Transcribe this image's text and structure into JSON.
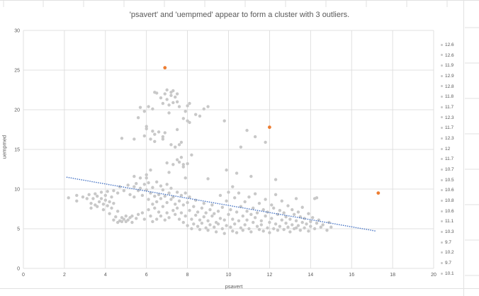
{
  "chart_data": {
    "type": "scatter",
    "title": "'psavert' and 'uempmed' appear to form a cluster with   3 outliers.",
    "xlabel": "psavert",
    "ylabel": "uempmed",
    "xlim": [
      0,
      20
    ],
    "ylim": [
      0,
      30
    ],
    "x_ticks": [
      "0",
      "2",
      "4",
      "6",
      "8",
      "10",
      "12",
      "14",
      "16",
      "18",
      "20"
    ],
    "y_ticks": [
      "0",
      "5",
      "10",
      "15",
      "20",
      "25",
      "30"
    ],
    "grid": true,
    "colors": {
      "points": "#c8c8c8",
      "outliers": "#ed7d31",
      "trendline": "#4472c4",
      "grid": "#d9d9d9"
    },
    "legend": {
      "placement": "right",
      "entries": [
        "12.6",
        "12.6",
        "11.9",
        "12.9",
        "12.8",
        "11.8",
        "11.7",
        "12.3",
        "11.7",
        "12.3",
        "12",
        "11.7",
        "10.7",
        "10.5",
        "10.6",
        "10.8",
        "10.6",
        "11.1",
        "10.3",
        "9.7",
        "10.2",
        "9.7",
        "10.1"
      ]
    },
    "series": [
      {
        "kind": "cluster",
        "points": [
          [
            2.2,
            8.9
          ],
          [
            2.6,
            9.2
          ],
          [
            2.6,
            8.5
          ],
          [
            2.9,
            9.0
          ],
          [
            3.1,
            8.8
          ],
          [
            3.2,
            9.3
          ],
          [
            3.3,
            8.2
          ],
          [
            3.3,
            7.6
          ],
          [
            3.4,
            8.8
          ],
          [
            3.5,
            9.4
          ],
          [
            3.5,
            8.0
          ],
          [
            3.6,
            9.1
          ],
          [
            3.6,
            7.8
          ],
          [
            3.7,
            8.4
          ],
          [
            3.8,
            9.6
          ],
          [
            3.8,
            8.8
          ],
          [
            3.9,
            8.1
          ],
          [
            3.9,
            7.4
          ],
          [
            4.0,
            9.2
          ],
          [
            4.0,
            8.6
          ],
          [
            4.1,
            9.7
          ],
          [
            4.1,
            7.9
          ],
          [
            4.2,
            8.4
          ],
          [
            4.2,
            6.9
          ],
          [
            4.3,
            9.0
          ],
          [
            4.3,
            7.6
          ],
          [
            4.4,
            9.8
          ],
          [
            4.4,
            8.2
          ],
          [
            4.4,
            6.1
          ],
          [
            4.5,
            6.5
          ],
          [
            4.6,
            5.8
          ],
          [
            4.6,
            7.2
          ],
          [
            4.6,
            9.5
          ],
          [
            4.7,
            6.0
          ],
          [
            4.7,
            10.3
          ],
          [
            4.8,
            6.4
          ],
          [
            4.8,
            5.9
          ],
          [
            4.9,
            6.2
          ],
          [
            4.9,
            9.8
          ],
          [
            5.0,
            6.6
          ],
          [
            5.0,
            5.9
          ],
          [
            5.1,
            6.1
          ],
          [
            5.1,
            10.5
          ],
          [
            5.2,
            6.4
          ],
          [
            5.2,
            9.3
          ],
          [
            5.3,
            5.8
          ],
          [
            5.3,
            6.6
          ],
          [
            5.4,
            10.3
          ],
          [
            5.4,
            9.0
          ],
          [
            5.5,
            6.3
          ],
          [
            5.5,
            10.7
          ],
          [
            5.6,
            9.8
          ],
          [
            5.6,
            6.8
          ],
          [
            5.7,
            11.4
          ],
          [
            5.7,
            10.1
          ],
          [
            5.8,
            7.0
          ],
          [
            5.8,
            9.2
          ],
          [
            5.9,
            10.6
          ],
          [
            5.9,
            6.2
          ],
          [
            6.0,
            9.9
          ],
          [
            6.0,
            11.8
          ],
          [
            6.1,
            8.7
          ],
          [
            6.1,
            7.4
          ],
          [
            6.1,
            10.8
          ],
          [
            6.2,
            9.5
          ],
          [
            6.2,
            6.6
          ],
          [
            6.3,
            10.2
          ],
          [
            6.3,
            8.1
          ],
          [
            6.3,
            5.9
          ],
          [
            6.4,
            9.1
          ],
          [
            6.4,
            7.6
          ],
          [
            6.5,
            10.9
          ],
          [
            6.5,
            8.4
          ],
          [
            6.5,
            6.2
          ],
          [
            6.6,
            9.3
          ],
          [
            6.6,
            7.1
          ],
          [
            6.7,
            10.4
          ],
          [
            6.7,
            8.8
          ],
          [
            6.7,
            6.6
          ],
          [
            6.8,
            9.9
          ],
          [
            6.8,
            7.8
          ],
          [
            6.9,
            6.1
          ],
          [
            6.9,
            9.1
          ],
          [
            7.0,
            8.3
          ],
          [
            7.0,
            10.6
          ],
          [
            7.0,
            7.0
          ],
          [
            7.1,
            9.5
          ],
          [
            7.1,
            6.4
          ],
          [
            7.2,
            8.7
          ],
          [
            7.2,
            10.1
          ],
          [
            7.3,
            7.3
          ],
          [
            7.3,
            9.0
          ],
          [
            7.4,
            8.1
          ],
          [
            7.4,
            6.8
          ],
          [
            7.5,
            9.6
          ],
          [
            7.5,
            7.6
          ],
          [
            7.6,
            8.5
          ],
          [
            7.6,
            6.2
          ],
          [
            7.7,
            9.2
          ],
          [
            7.7,
            7.0
          ],
          [
            7.8,
            8.0
          ],
          [
            7.8,
            5.8
          ],
          [
            7.9,
            9.5
          ],
          [
            7.9,
            6.6
          ],
          [
            8.0,
            8.3
          ],
          [
            8.0,
            5.4
          ],
          [
            8.1,
            7.3
          ],
          [
            8.1,
            9.0
          ],
          [
            8.2,
            6.2
          ],
          [
            8.2,
            5.0
          ],
          [
            8.3,
            7.8
          ],
          [
            8.3,
            5.6
          ],
          [
            8.4,
            6.7
          ],
          [
            8.4,
            8.6
          ],
          [
            8.5,
            5.3
          ],
          [
            8.5,
            7.1
          ],
          [
            8.6,
            6.1
          ],
          [
            8.6,
            4.9
          ],
          [
            8.7,
            7.6
          ],
          [
            8.7,
            5.7
          ],
          [
            8.8,
            6.5
          ],
          [
            8.8,
            8.2
          ],
          [
            8.9,
            5.1
          ],
          [
            8.9,
            7.0
          ],
          [
            9.0,
            6.0
          ],
          [
            9.0,
            4.8
          ],
          [
            9.1,
            7.4
          ],
          [
            9.1,
            5.5
          ],
          [
            9.2,
            6.6
          ],
          [
            9.2,
            8.0
          ],
          [
            9.3,
            5.2
          ],
          [
            9.3,
            6.9
          ],
          [
            9.4,
            5.8
          ],
          [
            9.4,
            4.6
          ],
          [
            9.5,
            7.2
          ],
          [
            9.5,
            5.6
          ],
          [
            9.6,
            6.3
          ],
          [
            9.6,
            9.2
          ],
          [
            9.7,
            5.0
          ],
          [
            9.7,
            7.7
          ],
          [
            9.8,
            6.1
          ],
          [
            9.8,
            4.4
          ],
          [
            9.9,
            8.5
          ],
          [
            9.9,
            5.4
          ],
          [
            10.0,
            6.8
          ],
          [
            10.0,
            9.6
          ],
          [
            10.1,
            5.2
          ],
          [
            10.1,
            7.4
          ],
          [
            10.2,
            4.7
          ],
          [
            10.2,
            6.2
          ],
          [
            10.3,
            8.9
          ],
          [
            10.3,
            5.6
          ],
          [
            10.4,
            7.1
          ],
          [
            10.4,
            4.5
          ],
          [
            10.5,
            9.5
          ],
          [
            10.5,
            6.0
          ],
          [
            10.6,
            5.1
          ],
          [
            10.6,
            7.8
          ],
          [
            10.7,
            6.6
          ],
          [
            10.7,
            4.8
          ],
          [
            10.8,
            8.4
          ],
          [
            10.8,
            5.5
          ],
          [
            10.9,
            7.2
          ],
          [
            10.9,
            6.1
          ],
          [
            11.0,
            5.0
          ],
          [
            11.0,
            9.0
          ],
          [
            11.1,
            6.8
          ],
          [
            11.1,
            4.6
          ],
          [
            11.2,
            7.6
          ],
          [
            11.2,
            5.8
          ],
          [
            11.3,
            6.4
          ],
          [
            11.3,
            9.4
          ],
          [
            11.4,
            5.3
          ],
          [
            11.4,
            7.0
          ],
          [
            11.5,
            4.9
          ],
          [
            11.5,
            8.2
          ],
          [
            11.6,
            6.0
          ],
          [
            11.6,
            5.5
          ],
          [
            11.7,
            7.4
          ],
          [
            11.7,
            4.7
          ],
          [
            11.8,
            6.6
          ],
          [
            11.8,
            8.7
          ],
          [
            11.9,
            5.1
          ],
          [
            11.9,
            7.1
          ],
          [
            12.0,
            5.8
          ],
          [
            12.0,
            4.5
          ],
          [
            12.1,
            8.0
          ],
          [
            12.1,
            6.3
          ],
          [
            12.2,
            5.0
          ],
          [
            12.2,
            7.6
          ],
          [
            12.3,
            5.6
          ],
          [
            12.3,
            9.3
          ],
          [
            12.4,
            6.8
          ],
          [
            12.4,
            4.8
          ],
          [
            12.5,
            7.3
          ],
          [
            12.5,
            5.3
          ],
          [
            12.6,
            6.1
          ],
          [
            12.6,
            8.5
          ],
          [
            12.7,
            4.9
          ],
          [
            12.7,
            7.0
          ],
          [
            12.8,
            5.7
          ],
          [
            12.8,
            6.5
          ],
          [
            12.9,
            5.2
          ],
          [
            12.9,
            7.9
          ],
          [
            13.0,
            6.2
          ],
          [
            13.0,
            4.6
          ],
          [
            13.1,
            7.4
          ],
          [
            13.1,
            5.5
          ],
          [
            13.2,
            6.8
          ],
          [
            13.2,
            5.0
          ],
          [
            13.3,
            8.8
          ],
          [
            13.3,
            6.0
          ],
          [
            13.4,
            5.4
          ],
          [
            13.4,
            7.1
          ],
          [
            13.5,
            4.8
          ],
          [
            13.5,
            6.5
          ],
          [
            13.6,
            5.8
          ],
          [
            13.6,
            7.7
          ],
          [
            13.7,
            5.1
          ],
          [
            13.7,
            6.3
          ],
          [
            13.8,
            5.6
          ],
          [
            13.9,
            6.9
          ],
          [
            13.9,
            4.7
          ],
          [
            14.0,
            5.9
          ],
          [
            14.0,
            5.3
          ],
          [
            14.1,
            6.4
          ],
          [
            14.2,
            5.0
          ],
          [
            14.3,
            8.9
          ],
          [
            14.3,
            5.7
          ],
          [
            14.4,
            6.1
          ],
          [
            14.5,
            5.2
          ],
          [
            14.6,
            5.5
          ],
          [
            14.8,
            4.8
          ],
          [
            14.9,
            5.8
          ],
          [
            15.0,
            5.2
          ],
          [
            13.3,
            5.1
          ],
          [
            14.2,
            8.8
          ],
          [
            6.9,
            22.0
          ],
          [
            7.0,
            21.3
          ],
          [
            7.0,
            22.5
          ],
          [
            7.1,
            20.6
          ],
          [
            7.2,
            21.8
          ],
          [
            7.2,
            22.2
          ],
          [
            7.3,
            20.9
          ],
          [
            7.3,
            22.4
          ],
          [
            7.4,
            21.6
          ],
          [
            7.5,
            22.0
          ],
          [
            7.5,
            21.0
          ],
          [
            7.6,
            20.4
          ],
          [
            7.1,
            19.6
          ],
          [
            6.8,
            20.8
          ],
          [
            6.7,
            21.5
          ],
          [
            6.5,
            22.1
          ],
          [
            6.3,
            20.1
          ],
          [
            6.1,
            20.4
          ],
          [
            5.9,
            19.8
          ],
          [
            5.7,
            20.3
          ],
          [
            6.6,
            17.2
          ],
          [
            6.8,
            16.6
          ],
          [
            6.9,
            17.1
          ],
          [
            6.4,
            16.9
          ],
          [
            6.3,
            17.3
          ],
          [
            6.2,
            16.3
          ],
          [
            6.0,
            17.6
          ],
          [
            6.0,
            17.9
          ],
          [
            5.6,
            19.0
          ],
          [
            5.9,
            16.7
          ],
          [
            6.4,
            16.0
          ],
          [
            6.8,
            16.3
          ],
          [
            7.5,
            17.5
          ],
          [
            7.7,
            15.9
          ],
          [
            7.6,
            15.6
          ],
          [
            7.8,
            18.9
          ],
          [
            7.9,
            19.8
          ],
          [
            8.0,
            20.5
          ],
          [
            8.0,
            18.6
          ],
          [
            8.1,
            18.4
          ],
          [
            8.1,
            20.8
          ],
          [
            8.4,
            19.4
          ],
          [
            8.6,
            19.2
          ],
          [
            8.8,
            20.1
          ],
          [
            9.0,
            20.4
          ],
          [
            8.2,
            14.3
          ],
          [
            7.4,
            15.3
          ],
          [
            7.2,
            15.6
          ],
          [
            7.6,
            13.4
          ],
          [
            7.8,
            13.1
          ],
          [
            7.7,
            14.0
          ],
          [
            7.5,
            13.7
          ],
          [
            7.3,
            13.1
          ],
          [
            7.0,
            13.3
          ],
          [
            7.1,
            12.1
          ],
          [
            7.9,
            11.4
          ],
          [
            7.8,
            12.8
          ],
          [
            8.0,
            13.2
          ],
          [
            9.8,
            18.6
          ],
          [
            10.9,
            17.4
          ],
          [
            11.3,
            16.6
          ],
          [
            11.8,
            15.9
          ],
          [
            10.6,
            15.3
          ],
          [
            9.0,
            11.3
          ],
          [
            9.9,
            12.4
          ],
          [
            10.4,
            12.0
          ],
          [
            11.1,
            11.6
          ],
          [
            12.3,
            11.2
          ],
          [
            10.2,
            10.3
          ],
          [
            6.2,
            12.4
          ],
          [
            6.0,
            11.4
          ],
          [
            5.4,
            11.6
          ],
          [
            4.8,
            16.4
          ],
          [
            5.4,
            16.3
          ],
          [
            6.4,
            22.2
          ]
        ]
      },
      {
        "kind": "outliers",
        "points": [
          [
            6.9,
            25.3
          ],
          [
            12.0,
            17.8
          ],
          [
            17.3,
            9.5
          ]
        ]
      },
      {
        "kind": "trendline",
        "points": [
          [
            2.1,
            11.5
          ],
          [
            17.2,
            4.7
          ]
        ]
      }
    ]
  }
}
